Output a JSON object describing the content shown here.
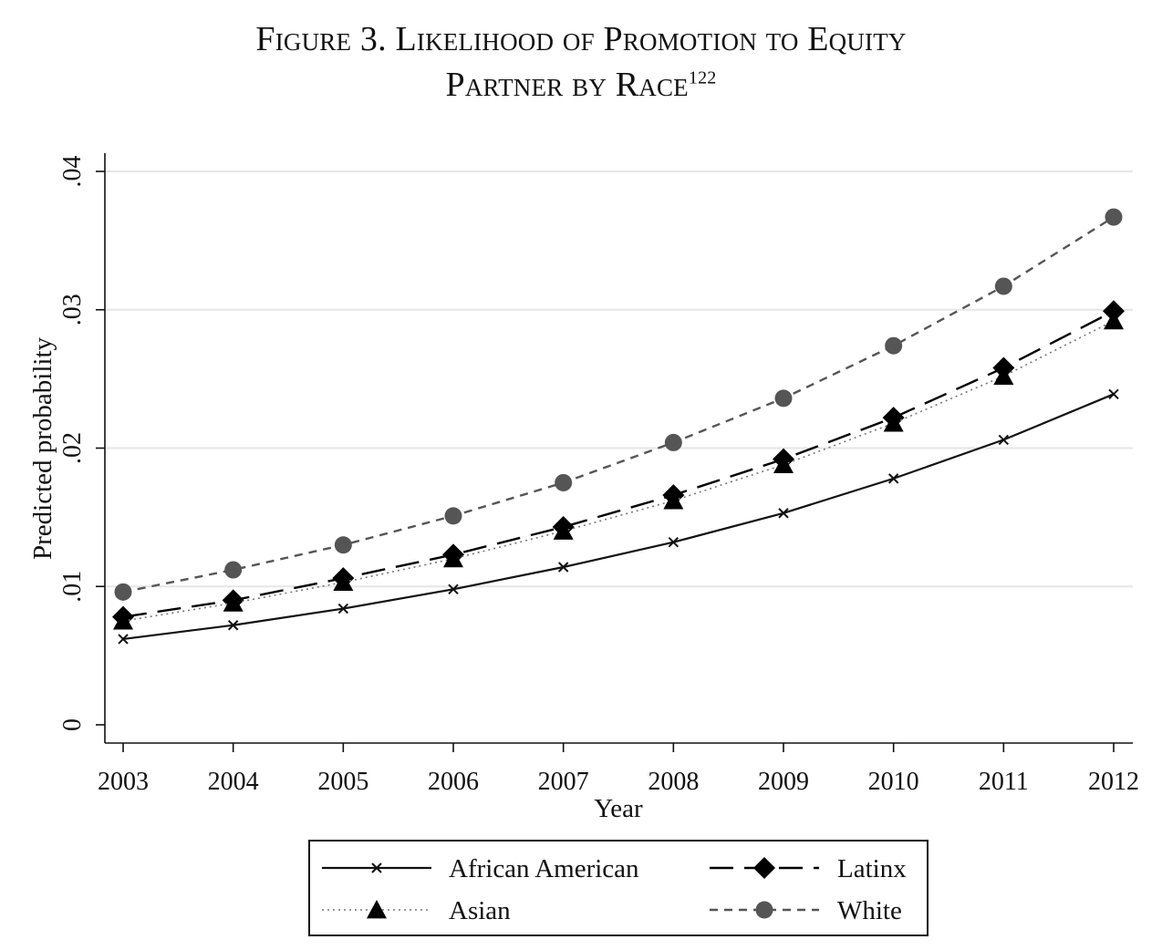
{
  "figure": {
    "title_line1": "Figure 3. Likelihood of Promotion to Equity",
    "title_line2": "Partner by Race",
    "title_footnote": "122"
  },
  "chart_data": {
    "type": "line",
    "x": [
      2003,
      2004,
      2005,
      2006,
      2007,
      2008,
      2009,
      2010,
      2011,
      2012
    ],
    "xlabel": "Year",
    "ylabel": "Predicted probability",
    "xlim": [
      2003,
      2012
    ],
    "ylim": [
      0,
      0.04
    ],
    "yticks": [
      0,
      0.01,
      0.02,
      0.03,
      0.04
    ],
    "ytick_labels": [
      "0",
      ".01",
      ".02",
      ".03",
      ".04"
    ],
    "xtick_labels": [
      "2003",
      "2004",
      "2005",
      "2006",
      "2007",
      "2008",
      "2009",
      "2010",
      "2011",
      "2012"
    ],
    "grid": true,
    "legend_position": "bottom",
    "series": [
      {
        "name": "African American",
        "values": [
          0.0062,
          0.0072,
          0.0084,
          0.0098,
          0.0114,
          0.0132,
          0.0153,
          0.0178,
          0.0206,
          0.0239
        ],
        "marker": "x",
        "line": "solid",
        "color": "#111111"
      },
      {
        "name": "Latinx",
        "values": [
          0.0078,
          0.009,
          0.0106,
          0.0123,
          0.0143,
          0.0166,
          0.0192,
          0.0222,
          0.0258,
          0.0299
        ],
        "marker": "diamond",
        "line": "longdash",
        "color": "#000000"
      },
      {
        "name": "Asian",
        "values": [
          0.0075,
          0.0088,
          0.0103,
          0.012,
          0.014,
          0.0162,
          0.0188,
          0.0218,
          0.0252,
          0.0292
        ],
        "marker": "triangle",
        "line": "dotted",
        "color": "#777777"
      },
      {
        "name": "White",
        "values": [
          0.0096,
          0.0112,
          0.013,
          0.0151,
          0.0175,
          0.0204,
          0.0236,
          0.0274,
          0.0317,
          0.0367
        ],
        "marker": "circle",
        "line": "shortdash",
        "color": "#555555"
      }
    ]
  }
}
